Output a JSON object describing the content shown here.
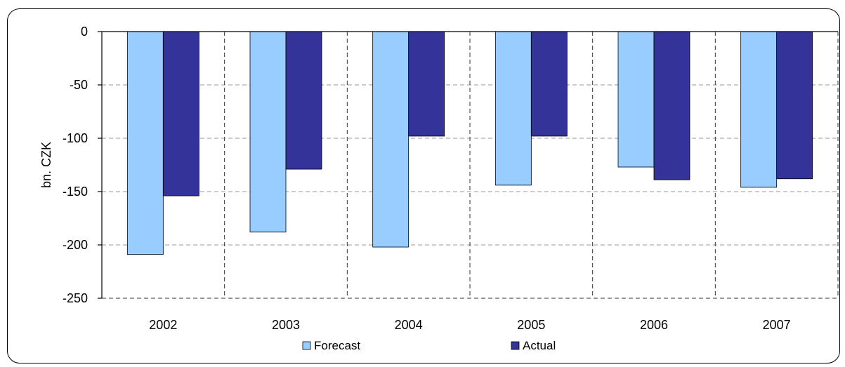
{
  "chart_data": {
    "type": "bar",
    "title": "",
    "xlabel": "",
    "ylabel": "bn. CZK",
    "categories": [
      "2002",
      "2003",
      "2004",
      "2005",
      "2006",
      "2007"
    ],
    "series": [
      {
        "name": "Forecast",
        "color": "#99ccff",
        "values": [
          -209,
          -188,
          -202,
          -144,
          -127,
          -146
        ]
      },
      {
        "name": "Actual",
        "color": "#333399",
        "values": [
          -154,
          -129,
          -98,
          -98,
          -139,
          -138
        ]
      }
    ],
    "ylim": [
      -250,
      0
    ],
    "yticks": [
      "0",
      "-50",
      "-100",
      "-150",
      "-200",
      "-250"
    ],
    "ytick_values": [
      0,
      -50,
      -100,
      -150,
      -200,
      -250
    ],
    "grid": true,
    "legend_position": "bottom"
  }
}
